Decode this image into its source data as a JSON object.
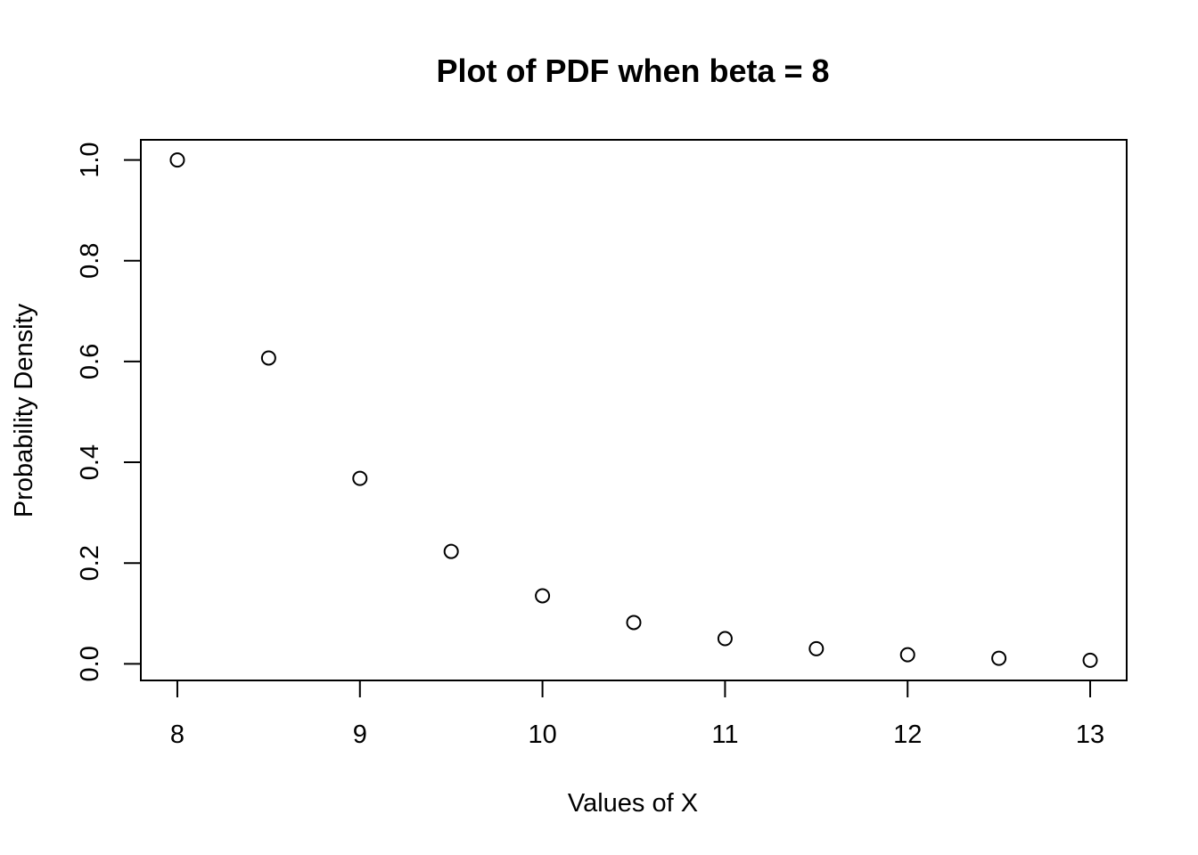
{
  "chart_data": {
    "type": "scatter",
    "title": "Plot of PDF when beta =  8",
    "xlabel": "Values of X",
    "ylabel": "Probability Density",
    "xlim": [
      7.8,
      13.2
    ],
    "ylim": [
      -0.033,
      1.04
    ],
    "xticks": [
      8,
      9,
      10,
      11,
      12,
      13
    ],
    "xtick_labels": [
      "8",
      "9",
      "10",
      "11",
      "12",
      "13"
    ],
    "yticks": [
      0.0,
      0.2,
      0.4,
      0.6,
      0.8,
      1.0
    ],
    "ytick_labels": [
      "0.0",
      "0.2",
      "0.4",
      "0.6",
      "0.8",
      "1.0"
    ],
    "grid": false,
    "marker": "open-circle",
    "color": "#000000",
    "series": [
      {
        "x": [
          8,
          8.5,
          9,
          9.5,
          10,
          10.5,
          11,
          11.5,
          12,
          12.5,
          13
        ],
        "y": [
          1.0,
          0.607,
          0.368,
          0.223,
          0.135,
          0.082,
          0.05,
          0.03,
          0.018,
          0.011,
          0.007
        ]
      }
    ]
  }
}
